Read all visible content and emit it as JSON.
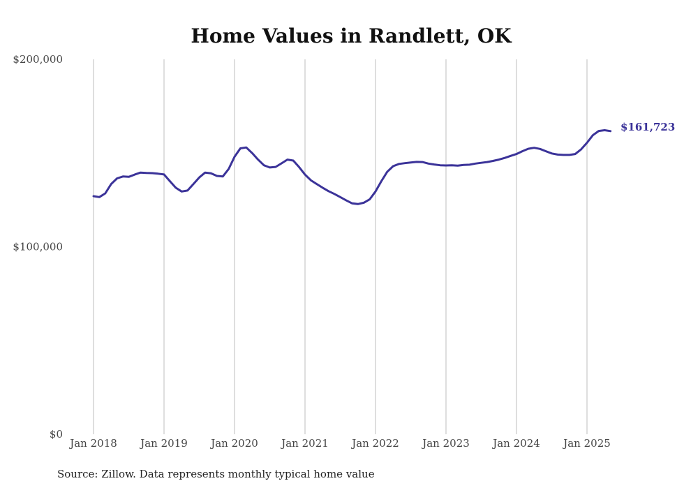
{
  "chart_data": {
    "type": "line",
    "title": "Home Values in Randlett, OK",
    "xlabel": "",
    "ylabel": "",
    "source": "Source: Zillow. Data represents monthly typical home value",
    "ylim": [
      0,
      200000
    ],
    "yticks": [
      {
        "value": 0,
        "label": "$0"
      },
      {
        "value": 100000,
        "label": "$100,000"
      },
      {
        "value": 200000,
        "label": "$200,000"
      }
    ],
    "xticks": [
      {
        "value": "2018-01",
        "label": "Jan 2018"
      },
      {
        "value": "2019-01",
        "label": "Jan 2019"
      },
      {
        "value": "2020-01",
        "label": "Jan 2020"
      },
      {
        "value": "2021-01",
        "label": "Jan 2021"
      },
      {
        "value": "2022-01",
        "label": "Jan 2022"
      },
      {
        "value": "2023-01",
        "label": "Jan 2023"
      },
      {
        "value": "2024-01",
        "label": "Jan 2024"
      },
      {
        "value": "2025-01",
        "label": "Jan 2025"
      }
    ],
    "xlim": [
      "2018-01",
      "2025-05"
    ],
    "grid": "vertical",
    "line_color": "#3b3399",
    "end_label": "$161,723",
    "series": [
      {
        "x": [
          "2018-01",
          "2018-02",
          "2018-03",
          "2018-04",
          "2018-05",
          "2018-06",
          "2018-07",
          "2018-08",
          "2018-09",
          "2018-10",
          "2018-11",
          "2018-12",
          "2019-01",
          "2019-02",
          "2019-03",
          "2019-04",
          "2019-05",
          "2019-06",
          "2019-07",
          "2019-08",
          "2019-09",
          "2019-10",
          "2019-11",
          "2019-12",
          "2020-01",
          "2020-02",
          "2020-03",
          "2020-04",
          "2020-05",
          "2020-06",
          "2020-07",
          "2020-08",
          "2020-09",
          "2020-10",
          "2020-11",
          "2020-12",
          "2021-01",
          "2021-02",
          "2021-03",
          "2021-04",
          "2021-05",
          "2021-06",
          "2021-07",
          "2021-08",
          "2021-09",
          "2021-10",
          "2021-11",
          "2021-12",
          "2022-01",
          "2022-02",
          "2022-03",
          "2022-04",
          "2022-05",
          "2022-06",
          "2022-07",
          "2022-08",
          "2022-09",
          "2022-10",
          "2022-11",
          "2022-12",
          "2023-01",
          "2023-02",
          "2023-03",
          "2023-04",
          "2023-05",
          "2023-06",
          "2023-07",
          "2023-08",
          "2023-09",
          "2023-10",
          "2023-11",
          "2023-12",
          "2024-01",
          "2024-02",
          "2024-03",
          "2024-04",
          "2024-05",
          "2024-06",
          "2024-07",
          "2024-08",
          "2024-09",
          "2024-10",
          "2024-11",
          "2024-12",
          "2025-01",
          "2025-02",
          "2025-03",
          "2025-04",
          "2025-05"
        ],
        "values": [
          127000,
          126500,
          128500,
          133500,
          136500,
          137500,
          137300,
          138500,
          139600,
          139400,
          139300,
          139000,
          138600,
          135000,
          131500,
          129500,
          130000,
          133500,
          137000,
          139600,
          139200,
          137800,
          137500,
          141500,
          148000,
          152500,
          153000,
          150000,
          146500,
          143500,
          142300,
          142600,
          144500,
          146500,
          146000,
          142500,
          138500,
          135500,
          133500,
          131500,
          129700,
          128200,
          126500,
          124800,
          123200,
          122800,
          123500,
          125300,
          129500,
          135000,
          140000,
          143000,
          144200,
          144600,
          145000,
          145300,
          145200,
          144400,
          143900,
          143500,
          143400,
          143500,
          143300,
          143700,
          143800,
          144400,
          144800,
          145200,
          145800,
          146500,
          147400,
          148500,
          149500,
          151000,
          152300,
          152800,
          152200,
          151000,
          149800,
          149200,
          149000,
          149000,
          149500,
          152000,
          155500,
          159500,
          161800,
          162200,
          161723
        ]
      }
    ]
  }
}
